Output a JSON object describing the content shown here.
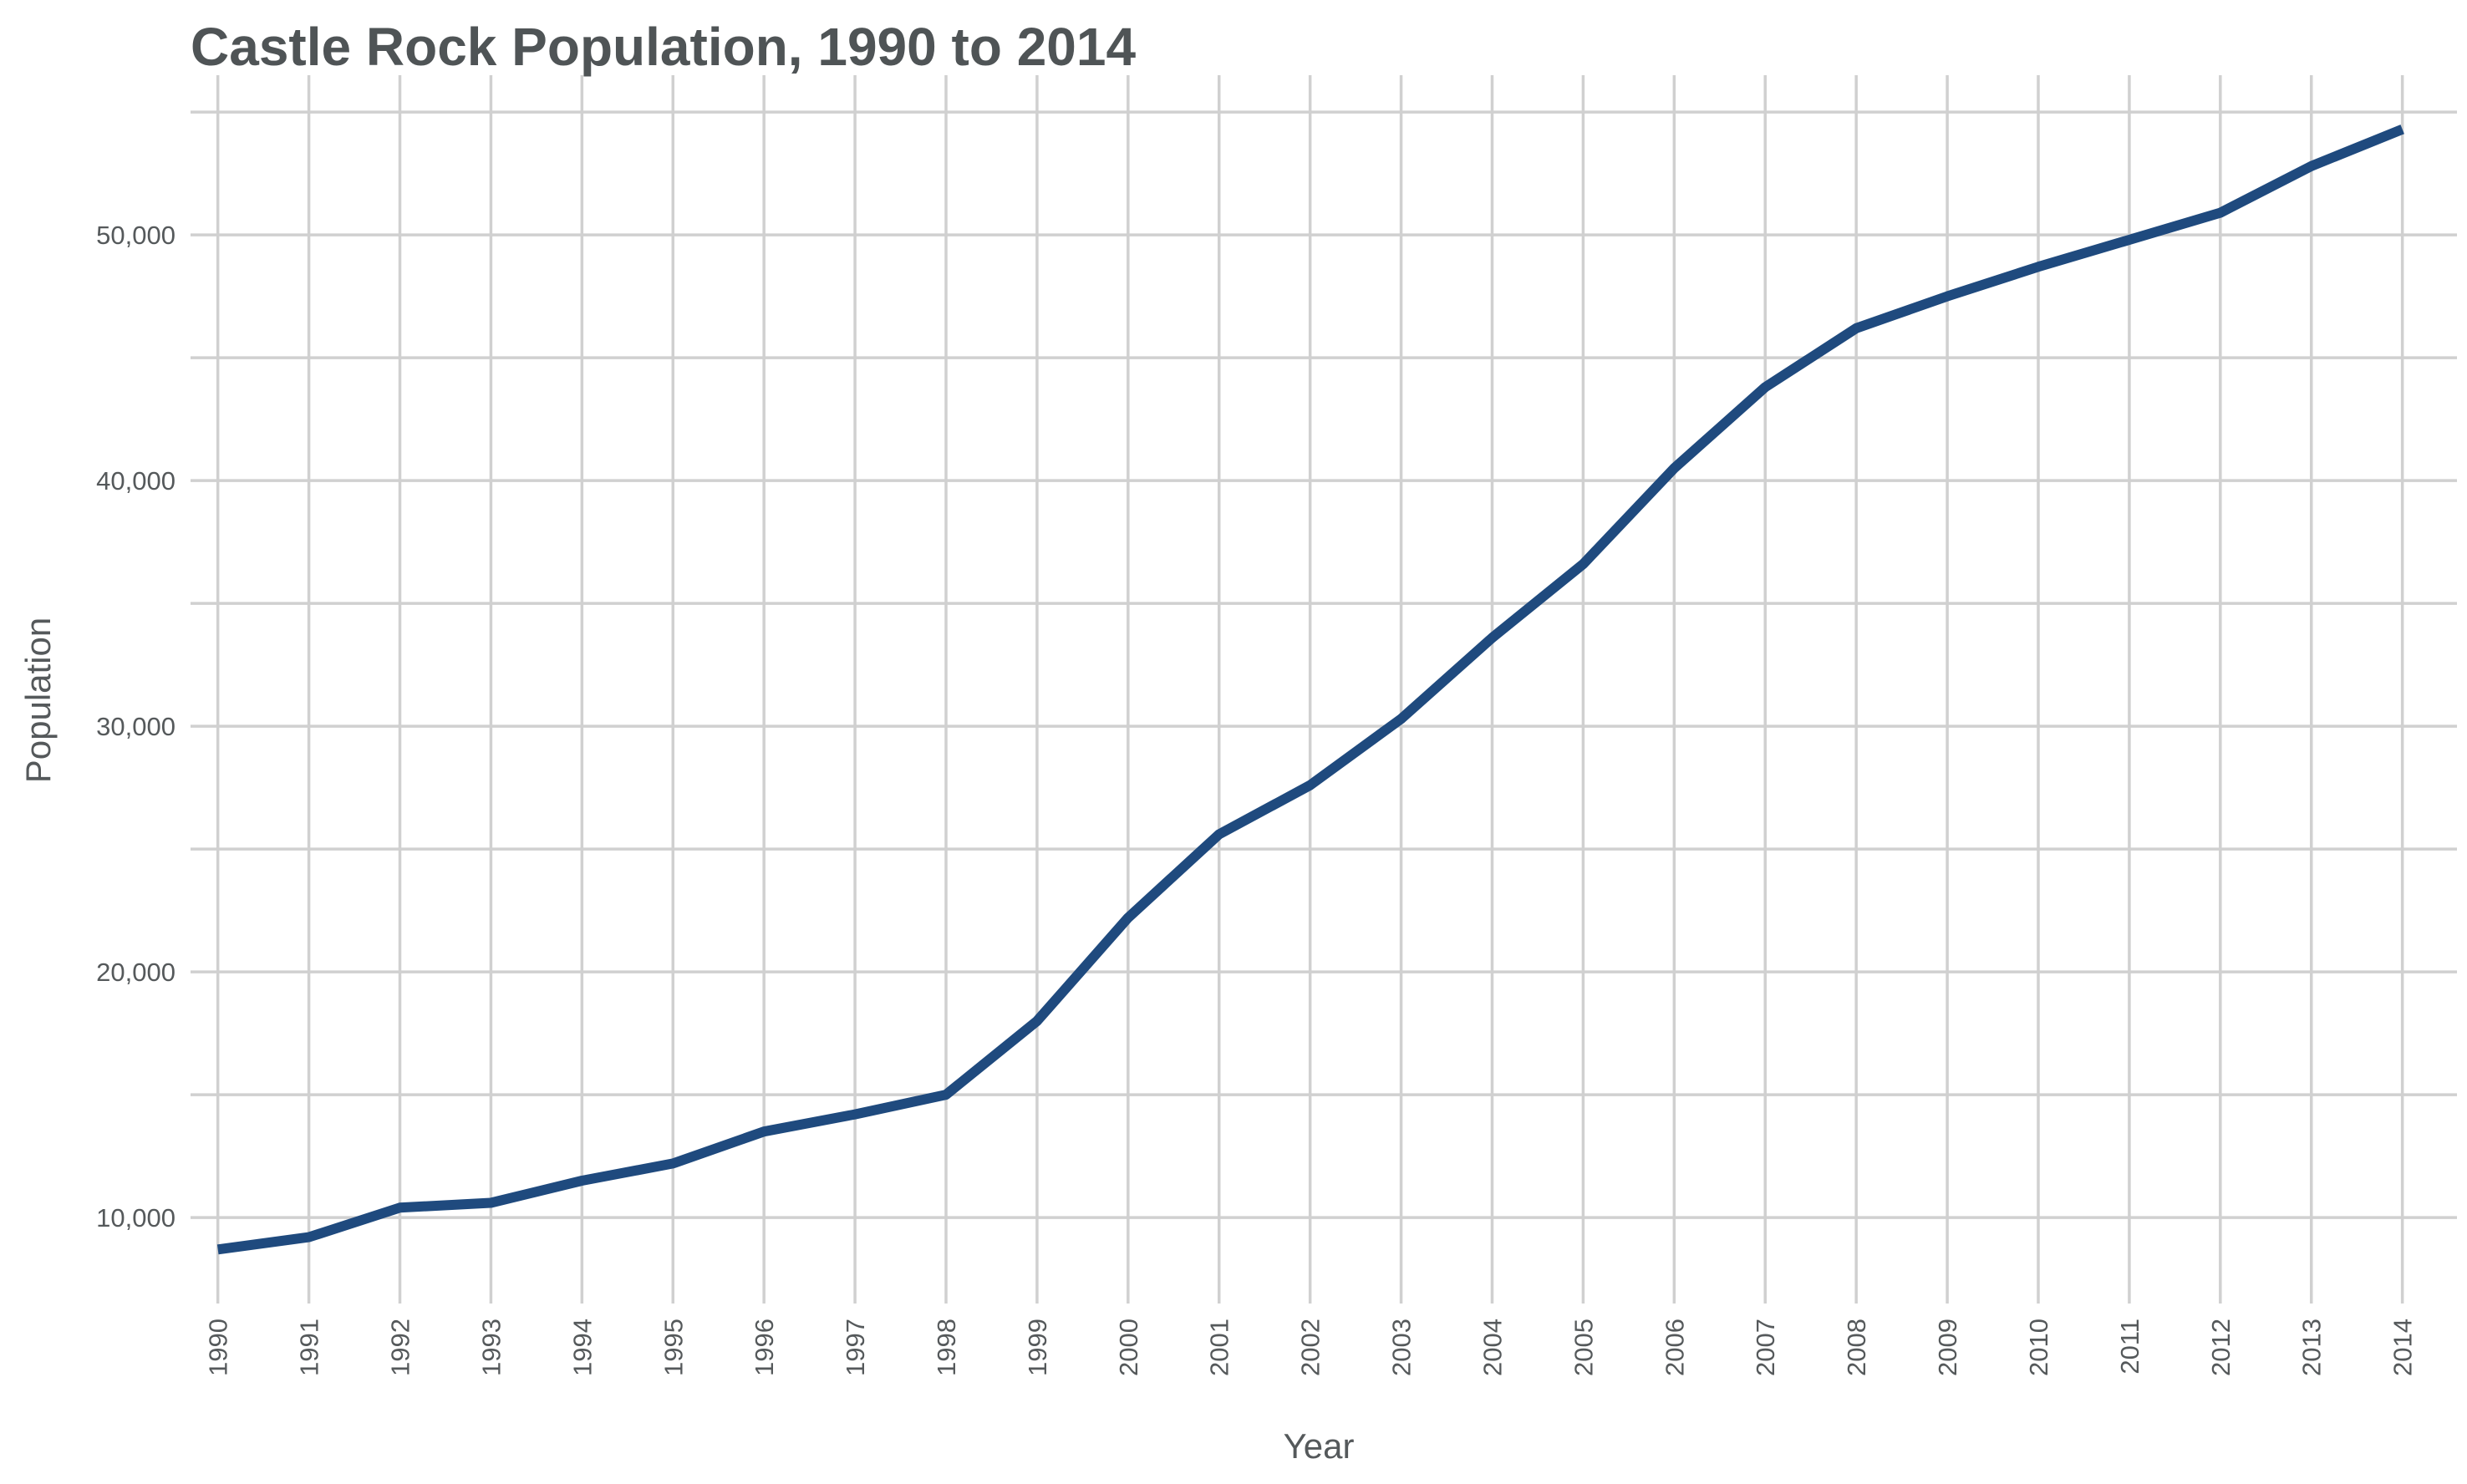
{
  "chart_data": {
    "type": "line",
    "title": "Castle Rock Population, 1990 to 2014",
    "xlabel": "Year",
    "ylabel": "Population",
    "x": [
      1990,
      1991,
      1992,
      1993,
      1994,
      1995,
      1996,
      1997,
      1998,
      1999,
      2000,
      2001,
      2002,
      2003,
      2004,
      2005,
      2006,
      2007,
      2008,
      2009,
      2010,
      2011,
      2012,
      2013,
      2014
    ],
    "x_tick_labels": [
      "1990",
      "1991",
      "1992",
      "1993",
      "1994",
      "1995",
      "1996",
      "1997",
      "1998",
      "1999",
      "2000",
      "2001",
      "2002",
      "2003",
      "2004",
      "2005",
      "2006",
      "2007",
      "2008",
      "2009",
      "2010",
      "2011",
      "2012",
      "2013",
      "2014"
    ],
    "series": [
      {
        "values": [
          8700,
          9200,
          10400,
          10600,
          11500,
          12200,
          13500,
          14200,
          15000,
          18000,
          22200,
          25600,
          27600,
          30300,
          33600,
          36600,
          40500,
          43800,
          46200,
          47500,
          48700,
          49800,
          50900,
          52800,
          54300
        ],
        "color": "#1f4a7e"
      }
    ],
    "xlim": [
      1989.7,
      2014.6
    ],
    "ylim": [
      6500,
      56500
    ],
    "y_ticks": [
      10000,
      20000,
      30000,
      40000,
      50000
    ],
    "y_tick_labels": [
      "10,000",
      "20,000",
      "30,000",
      "40,000",
      "50,000"
    ],
    "y_minor_ticks": [
      15000,
      25000,
      35000,
      45000,
      55000
    ],
    "grid": true,
    "legend": "none",
    "colors": {
      "grid": "#d0d0d0",
      "text": "#55595b",
      "title": "#4f5456",
      "line": "#1f4a7e"
    }
  }
}
